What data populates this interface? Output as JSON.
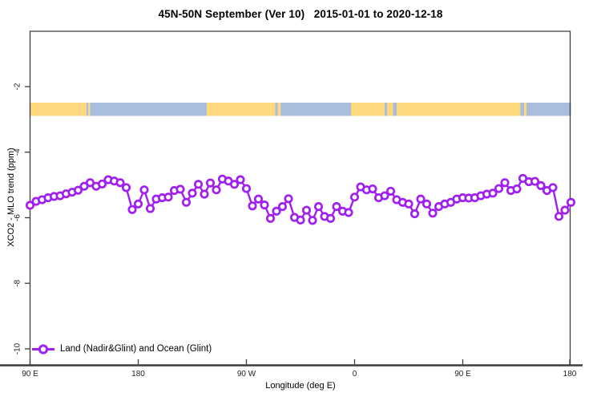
{
  "figure": {
    "title": "45N-50N September (Ver 10)   2015-01-01 to 2020-12-18",
    "xlabel": "Longitude (deg E)",
    "ylabel": "XCO2 - MLO trend (ppm)",
    "legend": {
      "label": "Land (Nadir&Glint) and Ocean (Glint)",
      "marker": "purple-line-open-circle"
    }
  },
  "colors": {
    "series_purple": "#A020F0",
    "land_band": "#FDD87E",
    "ocean_band": "#A9BEDC",
    "axis": "#3D3D3D",
    "tick_text": "#222222"
  },
  "chart_data": {
    "type": "line",
    "title": "45N-50N September (Ver 10)   2015-01-01 to 2020-12-18",
    "xlabel": "Longitude (deg E)",
    "ylabel": "XCO2 - MLO trend (ppm)",
    "x_rule": "longitude starts at 90E, step 5 deg eastward, wrapping 90E->180->90W->0->90E->180 (450 deg span)",
    "x_span_deg": 450,
    "x_step_deg": 5,
    "ylim": [
      -10.5,
      -0.3
    ],
    "grid": "off",
    "legend_position": "bottom-left-inside",
    "series": [
      {
        "name": "Land (Nadir&Glint) and Ocean (Glint)",
        "marker": "open-circle",
        "values": [
          -5.62,
          -5.5,
          -5.45,
          -5.39,
          -5.35,
          -5.33,
          -5.27,
          -5.22,
          -5.16,
          -5.04,
          -4.93,
          -5.04,
          -4.97,
          -4.84,
          -4.88,
          -4.93,
          -5.08,
          -5.75,
          -5.58,
          -5.15,
          -5.72,
          -5.43,
          -5.39,
          -5.37,
          -5.17,
          -5.13,
          -5.53,
          -5.25,
          -4.98,
          -5.28,
          -4.94,
          -5.15,
          -4.82,
          -4.88,
          -4.98,
          -4.84,
          -5.11,
          -5.64,
          -5.43,
          -5.61,
          -6.02,
          -5.8,
          -5.66,
          -5.42,
          -5.99,
          -6.07,
          -5.77,
          -6.08,
          -5.66,
          -5.96,
          -6.02,
          -5.66,
          -5.8,
          -5.84,
          -5.37,
          -5.06,
          -5.15,
          -5.12,
          -5.39,
          -5.33,
          -5.19,
          -5.45,
          -5.53,
          -5.58,
          -5.88,
          -5.43,
          -5.58,
          -5.86,
          -5.66,
          -5.58,
          -5.53,
          -5.43,
          -5.39,
          -5.4,
          -5.39,
          -5.33,
          -5.28,
          -5.25,
          -5.11,
          -4.93,
          -5.17,
          -5.12,
          -4.8,
          -4.9,
          -4.89,
          -5.02,
          -5.17,
          -5.08,
          -5.96,
          -5.77,
          -5.53
        ]
      }
    ],
    "xticks": [
      {
        "deg": 0,
        "label": "90 E"
      },
      {
        "deg": 90,
        "label": "180"
      },
      {
        "deg": 180,
        "label": "90 W"
      },
      {
        "deg": 270,
        "label": "0"
      },
      {
        "deg": 360,
        "label": "90 E"
      },
      {
        "deg": 450,
        "label": "180"
      }
    ],
    "yticks": [
      {
        "value": -2,
        "label": "-2"
      },
      {
        "value": -4,
        "label": "-4"
      },
      {
        "value": -6,
        "label": "-6"
      },
      {
        "value": -8,
        "label": "-8"
      },
      {
        "value": -10,
        "label": "-10"
      }
    ],
    "surface_band": {
      "description": "land/ocean strip along 45N-50N drawn at about -2.7 ppm",
      "y_top_ppm": -2.5,
      "y_bottom_ppm": -2.9,
      "segments": [
        {
          "from_deg": 0,
          "to_deg": 47,
          "type": "land"
        },
        {
          "from_deg": 47,
          "to_deg": 48.5,
          "type": "ocean"
        },
        {
          "from_deg": 48.5,
          "to_deg": 50,
          "type": "land"
        },
        {
          "from_deg": 50,
          "to_deg": 147,
          "type": "ocean"
        },
        {
          "from_deg": 147,
          "to_deg": 204,
          "type": "land"
        },
        {
          "from_deg": 204,
          "to_deg": 206,
          "type": "ocean"
        },
        {
          "from_deg": 206,
          "to_deg": 208.5,
          "type": "land"
        },
        {
          "from_deg": 208.5,
          "to_deg": 267,
          "type": "ocean"
        },
        {
          "from_deg": 267,
          "to_deg": 295,
          "type": "land"
        },
        {
          "from_deg": 295,
          "to_deg": 297,
          "type": "ocean"
        },
        {
          "from_deg": 297,
          "to_deg": 302,
          "type": "land"
        },
        {
          "from_deg": 302,
          "to_deg": 305,
          "type": "ocean"
        },
        {
          "from_deg": 305,
          "to_deg": 408,
          "type": "land"
        },
        {
          "from_deg": 408,
          "to_deg": 411,
          "type": "ocean"
        },
        {
          "from_deg": 411,
          "to_deg": 413,
          "type": "land"
        },
        {
          "from_deg": 413,
          "to_deg": 450,
          "type": "ocean"
        }
      ]
    }
  }
}
